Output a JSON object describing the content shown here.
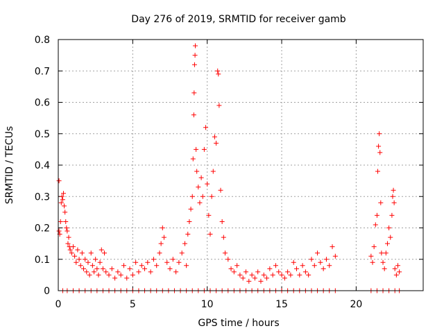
{
  "chart_data": {
    "type": "scatter",
    "title": "Day 276 of 2019, SRMTID for receiver gamb",
    "xlabel": "GPS time / hours",
    "ylabel": "SRMTID / TECUs",
    "xlim": [
      0,
      24.5
    ],
    "ylim": [
      0,
      0.8
    ],
    "xticks": [
      0,
      5,
      10,
      15,
      20
    ],
    "yticks": [
      0,
      0.1,
      0.2,
      0.3,
      0.4,
      0.5,
      0.6,
      0.7,
      0.8
    ],
    "ytick_labels": [
      "0",
      "0.1",
      "0.2",
      "0.3",
      "0.4",
      "0.5",
      "0.6",
      "0.7",
      "0.8"
    ],
    "grid": true,
    "marker": "+",
    "color": "#ff0000",
    "series": [
      {
        "name": "SRMTID",
        "points": [
          [
            0.05,
            0.35
          ],
          [
            0.05,
            0.19
          ],
          [
            0.1,
            0.18
          ],
          [
            0.15,
            0.22
          ],
          [
            0.2,
            0.28
          ],
          [
            0.25,
            0.3
          ],
          [
            0.3,
            0.29
          ],
          [
            0.35,
            0.31
          ],
          [
            0.4,
            0.27
          ],
          [
            0.45,
            0.25
          ],
          [
            0.5,
            0.22
          ],
          [
            0.55,
            0.2
          ],
          [
            0.6,
            0.19
          ],
          [
            0.65,
            0.15
          ],
          [
            0.7,
            0.17
          ],
          [
            0.75,
            0.14
          ],
          [
            0.8,
            0.13
          ],
          [
            0.9,
            0.12
          ],
          [
            1.0,
            0.14
          ],
          [
            1.1,
            0.11
          ],
          [
            1.2,
            0.09
          ],
          [
            1.3,
            0.13
          ],
          [
            1.4,
            0.1
          ],
          [
            1.5,
            0.08
          ],
          [
            1.6,
            0.12
          ],
          [
            1.7,
            0.07
          ],
          [
            1.8,
            0.1
          ],
          [
            1.9,
            0.06
          ],
          [
            2.0,
            0.09
          ],
          [
            2.1,
            0.05
          ],
          [
            2.2,
            0.12
          ],
          [
            2.3,
            0.08
          ],
          [
            2.4,
            0.06
          ],
          [
            2.5,
            0.1
          ],
          [
            2.6,
            0.07
          ],
          [
            2.7,
            0.05
          ],
          [
            2.8,
            0.09
          ],
          [
            2.9,
            0.13
          ],
          [
            3.0,
            0.07
          ],
          [
            3.1,
            0.12
          ],
          [
            3.2,
            0.06
          ],
          [
            3.4,
            0.05
          ],
          [
            3.6,
            0.07
          ],
          [
            3.8,
            0.04
          ],
          [
            4.0,
            0.06
          ],
          [
            4.2,
            0.05
          ],
          [
            4.4,
            0.08
          ],
          [
            4.6,
            0.04
          ],
          [
            4.8,
            0.07
          ],
          [
            5.0,
            0.05
          ],
          [
            5.2,
            0.09
          ],
          [
            5.4,
            0.06
          ],
          [
            5.6,
            0.08
          ],
          [
            5.8,
            0.07
          ],
          [
            6.0,
            0.09
          ],
          [
            6.2,
            0.06
          ],
          [
            6.4,
            0.1
          ],
          [
            6.6,
            0.08
          ],
          [
            6.8,
            0.12
          ],
          [
            6.9,
            0.15
          ],
          [
            7.0,
            0.2
          ],
          [
            7.1,
            0.17
          ],
          [
            7.3,
            0.09
          ],
          [
            7.5,
            0.07
          ],
          [
            7.7,
            0.1
          ],
          [
            7.9,
            0.06
          ],
          [
            8.1,
            0.09
          ],
          [
            8.3,
            0.12
          ],
          [
            8.5,
            0.15
          ],
          [
            8.6,
            0.08
          ],
          [
            8.7,
            0.18
          ],
          [
            8.8,
            0.22
          ],
          [
            8.9,
            0.26
          ],
          [
            9.0,
            0.3
          ],
          [
            9.05,
            0.42
          ],
          [
            9.1,
            0.56
          ],
          [
            9.12,
            0.63
          ],
          [
            9.15,
            0.72
          ],
          [
            9.18,
            0.75
          ],
          [
            9.2,
            0.78
          ],
          [
            9.25,
            0.45
          ],
          [
            9.3,
            0.38
          ],
          [
            9.4,
            0.33
          ],
          [
            9.5,
            0.28
          ],
          [
            9.6,
            0.36
          ],
          [
            9.7,
            0.3
          ],
          [
            9.8,
            0.45
          ],
          [
            9.9,
            0.52
          ],
          [
            10.0,
            0.34
          ],
          [
            10.1,
            0.24
          ],
          [
            10.2,
            0.18
          ],
          [
            10.3,
            0.3
          ],
          [
            10.4,
            0.38
          ],
          [
            10.5,
            0.49
          ],
          [
            10.6,
            0.47
          ],
          [
            10.7,
            0.7
          ],
          [
            10.75,
            0.69
          ],
          [
            10.8,
            0.59
          ],
          [
            10.9,
            0.32
          ],
          [
            11.0,
            0.22
          ],
          [
            11.1,
            0.17
          ],
          [
            11.2,
            0.12
          ],
          [
            11.4,
            0.1
          ],
          [
            11.6,
            0.07
          ],
          [
            11.8,
            0.06
          ],
          [
            12.0,
            0.08
          ],
          [
            12.2,
            0.05
          ],
          [
            12.4,
            0.04
          ],
          [
            12.6,
            0.06
          ],
          [
            12.8,
            0.03
          ],
          [
            13.0,
            0.05
          ],
          [
            13.2,
            0.04
          ],
          [
            13.4,
            0.06
          ],
          [
            13.6,
            0.03
          ],
          [
            13.8,
            0.05
          ],
          [
            14.0,
            0.04
          ],
          [
            14.2,
            0.07
          ],
          [
            14.4,
            0.05
          ],
          [
            14.6,
            0.08
          ],
          [
            14.8,
            0.06
          ],
          [
            15.0,
            0.05
          ],
          [
            15.2,
            0.04
          ],
          [
            15.4,
            0.06
          ],
          [
            15.6,
            0.05
          ],
          [
            15.8,
            0.09
          ],
          [
            16.0,
            0.07
          ],
          [
            16.2,
            0.05
          ],
          [
            16.4,
            0.08
          ],
          [
            16.6,
            0.06
          ],
          [
            16.8,
            0.05
          ],
          [
            17.0,
            0.1
          ],
          [
            17.2,
            0.08
          ],
          [
            17.4,
            0.12
          ],
          [
            17.6,
            0.09
          ],
          [
            17.8,
            0.07
          ],
          [
            18.0,
            0.1
          ],
          [
            18.2,
            0.08
          ],
          [
            18.4,
            0.14
          ],
          [
            18.6,
            0.11
          ],
          [
            21.0,
            0.11
          ],
          [
            21.1,
            0.09
          ],
          [
            21.2,
            0.14
          ],
          [
            21.3,
            0.21
          ],
          [
            21.4,
            0.24
          ],
          [
            21.45,
            0.38
          ],
          [
            21.5,
            0.46
          ],
          [
            21.55,
            0.5
          ],
          [
            21.6,
            0.44
          ],
          [
            21.65,
            0.28
          ],
          [
            21.7,
            0.12
          ],
          [
            21.8,
            0.09
          ],
          [
            21.9,
            0.07
          ],
          [
            22.0,
            0.12
          ],
          [
            22.1,
            0.15
          ],
          [
            22.2,
            0.2
          ],
          [
            22.3,
            0.17
          ],
          [
            22.4,
            0.24
          ],
          [
            22.45,
            0.3
          ],
          [
            22.5,
            0.32
          ],
          [
            22.55,
            0.28
          ],
          [
            22.6,
            0.07
          ],
          [
            22.7,
            0.05
          ],
          [
            22.8,
            0.08
          ],
          [
            22.9,
            0.06
          ],
          [
            0.3,
            0
          ],
          [
            0.6,
            0
          ],
          [
            1.0,
            0
          ],
          [
            1.4,
            0
          ],
          [
            1.8,
            0
          ],
          [
            2.2,
            0
          ],
          [
            2.6,
            0
          ],
          [
            3.0,
            0
          ],
          [
            3.4,
            0
          ],
          [
            3.8,
            0
          ],
          [
            4.2,
            0
          ],
          [
            4.6,
            0
          ],
          [
            5.0,
            0
          ],
          [
            5.4,
            0
          ],
          [
            5.8,
            0
          ],
          [
            6.2,
            0
          ],
          [
            6.6,
            0
          ],
          [
            7.0,
            0
          ],
          [
            7.4,
            0
          ],
          [
            7.8,
            0
          ],
          [
            8.2,
            0
          ],
          [
            8.6,
            0
          ],
          [
            9.0,
            0
          ],
          [
            9.4,
            0
          ],
          [
            9.8,
            0
          ],
          [
            10.2,
            0
          ],
          [
            10.6,
            0
          ],
          [
            11.0,
            0
          ],
          [
            11.4,
            0
          ],
          [
            11.8,
            0
          ],
          [
            12.2,
            0
          ],
          [
            12.6,
            0
          ],
          [
            13.0,
            0
          ],
          [
            13.4,
            0
          ],
          [
            13.8,
            0
          ],
          [
            14.2,
            0
          ],
          [
            14.6,
            0
          ],
          [
            15.0,
            0
          ],
          [
            15.4,
            0
          ],
          [
            15.8,
            0
          ],
          [
            16.2,
            0
          ],
          [
            16.6,
            0
          ],
          [
            17.0,
            0
          ],
          [
            17.4,
            0
          ],
          [
            17.8,
            0
          ],
          [
            18.2,
            0
          ],
          [
            18.6,
            0
          ],
          [
            21.0,
            0
          ],
          [
            21.4,
            0
          ],
          [
            21.8,
            0
          ],
          [
            22.2,
            0
          ],
          [
            22.6,
            0
          ],
          [
            22.9,
            0
          ]
        ]
      }
    ]
  }
}
